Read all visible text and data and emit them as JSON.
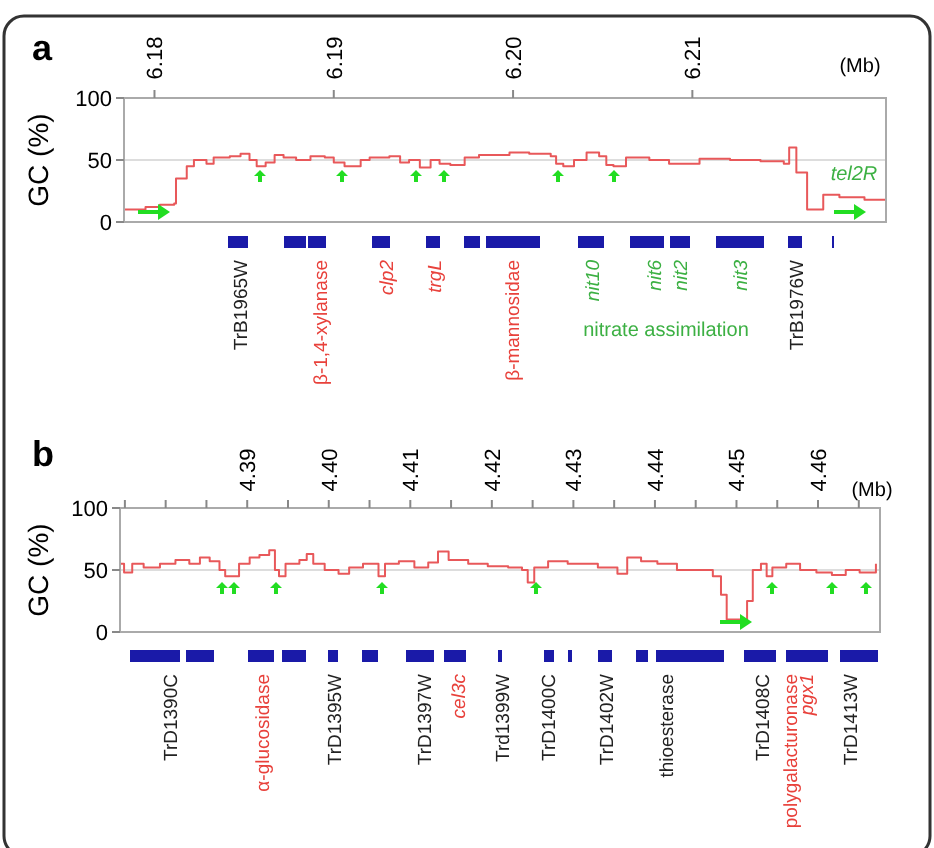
{
  "chart_data": [
    {
      "type": "step",
      "title": "a",
      "xlabel": "(Mb)",
      "ylabel": "GC (%)",
      "xlim": [
        6.1783,
        6.2208
      ],
      "xticks": [
        6.18,
        6.19,
        {
          "value": 6.2,
          "label": "6.20"
        },
        6.21
      ],
      "ylim": [
        0,
        100
      ],
      "yticks": [
        0,
        50,
        100
      ],
      "grid": "y",
      "series": [
        {
          "color": "#e8585a",
          "x": [
            6.1783,
            6.1795,
            6.1803,
            6.1811,
            6.1812,
            6.1818,
            6.1822,
            6.1829,
            6.1833,
            6.1842,
            6.1848,
            6.1853,
            6.1857,
            6.1862,
            6.1867,
            6.1872,
            6.1879,
            6.1887,
            6.1895,
            6.19,
            6.1906,
            6.1915,
            6.192,
            6.1931,
            6.1937,
            6.1942,
            6.1948,
            6.1954,
            6.1959,
            6.1965,
            6.1973,
            6.1981,
            6.1998,
            6.2009,
            6.2021,
            6.2024,
            6.2028,
            6.2034,
            6.2041,
            6.2048,
            6.2052,
            6.2056,
            6.2063,
            6.2076,
            6.2087,
            6.2104,
            6.2121,
            6.2138,
            6.2151,
            6.2154,
            6.2158,
            6.2164,
            6.2173,
            6.2182,
            6.2196,
            6.2208
          ],
          "values": [
            10,
            12,
            14,
            15,
            35,
            45,
            50,
            47,
            52,
            53,
            55,
            50,
            45,
            48,
            54,
            52,
            50,
            53,
            52,
            48,
            45,
            50,
            52,
            53,
            48,
            50,
            44,
            50,
            47,
            46,
            52,
            54,
            56,
            55,
            53,
            47,
            45,
            50,
            56,
            53,
            46,
            45,
            52,
            50,
            47,
            51,
            50,
            49,
            47,
            60,
            40,
            10,
            22,
            20,
            18,
            18
          ]
        }
      ],
      "annotations": [
        "tel2R",
        "TrB1965W",
        "β-1,4-xylanase",
        "clp2",
        "trgL",
        "β-mannosidae",
        "nit10",
        "nit6",
        "nit2",
        "nit3",
        "TrB1976W",
        "nitrate assimilation"
      ]
    },
    {
      "type": "step",
      "title": "b",
      "xlabel": "(Mb)",
      "ylabel": "GC (%)",
      "xlim": [
        4.3744,
        4.4676
      ],
      "xticks": [
        {
          "value": 4.375,
          "label": null
        },
        {
          "value": 4.38,
          "label": null
        },
        {
          "value": 4.385,
          "label": null
        },
        4.39,
        {
          "value": 4.395,
          "label": null
        },
        {
          "value": 4.4,
          "label": "4.40"
        },
        {
          "value": 4.405,
          "label": null
        },
        4.41,
        {
          "value": 4.415,
          "label": null
        },
        4.42,
        {
          "value": 4.425,
          "label": null
        },
        4.43,
        {
          "value": 4.435,
          "label": null
        },
        4.44,
        {
          "value": 4.445,
          "label": null
        },
        4.45,
        {
          "value": 4.455,
          "label": null
        },
        4.46,
        {
          "value": 4.465,
          "label": null
        }
      ],
      "ylim": [
        0,
        100
      ],
      "yticks": [
        0,
        50,
        100
      ],
      "grid": "y",
      "series": [
        {
          "color": "#e8585a",
          "x": [
            4.3744,
            4.3749,
            4.3759,
            4.3773,
            4.3793,
            4.3812,
            4.3829,
            4.3842,
            4.3854,
            4.3866,
            4.3873,
            4.3883,
            4.389,
            4.3903,
            4.3915,
            4.3927,
            4.3934,
            4.3939,
            4.3947,
            4.3964,
            4.3973,
            4.3981,
            4.3995,
            4.4012,
            4.4025,
            4.4042,
            4.4061,
            4.4069,
            4.4086,
            4.4105,
            4.4122,
            4.4134,
            4.4147,
            4.4171,
            4.4195,
            4.422,
            4.4237,
            4.4244,
            4.4252,
            4.4269,
            4.4293,
            4.433,
            4.4354,
            4.4366,
            4.4383,
            4.4403,
            4.4427,
            4.4464,
            4.4471,
            4.4481,
            4.4488,
            4.4505,
            4.4513,
            4.452,
            4.453,
            4.4537,
            4.4544,
            4.4561,
            4.4578,
            4.4598,
            4.4617,
            4.4634,
            4.4651,
            4.4671
          ],
          "values": [
            55,
            48,
            55,
            52,
            55,
            58,
            55,
            60,
            57,
            50,
            45,
            45,
            55,
            60,
            62,
            66,
            50,
            45,
            55,
            58,
            63,
            55,
            50,
            47,
            52,
            55,
            45,
            55,
            57,
            52,
            56,
            65,
            58,
            55,
            53,
            52,
            50,
            40,
            52,
            57,
            55,
            52,
            47,
            60,
            57,
            55,
            50,
            50,
            45,
            30,
            10,
            8,
            25,
            50,
            55,
            45,
            52,
            55,
            50,
            48,
            46,
            50,
            48,
            55
          ]
        }
      ],
      "annotations": [
        "TrD1390C",
        "α-glucosidase",
        "TrD1395W",
        "TrD1397W",
        "cel3c",
        "Trd1399W",
        "TrD1400C",
        "TrD1402W",
        "thioesterase",
        "TrD1408C",
        "polygalacturonase",
        "pgx1",
        "TrD1413W"
      ]
    }
  ]
}
